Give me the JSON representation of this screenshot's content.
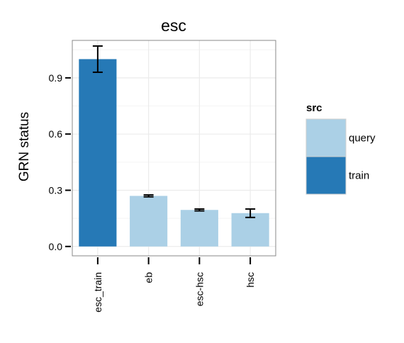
{
  "chart_data": {
    "type": "bar",
    "title": "esc",
    "xlabel": "",
    "ylabel": "GRN status",
    "categories": [
      "esc_train",
      "eb",
      "esc-hsc",
      "hsc"
    ],
    "values": [
      1.0,
      0.27,
      0.195,
      0.178
    ],
    "error_low": [
      0.93,
      0.265,
      0.19,
      0.155
    ],
    "error_high": [
      1.07,
      0.275,
      0.2,
      0.2
    ],
    "groups": [
      "train",
      "query",
      "query",
      "query"
    ],
    "ylim": [
      -0.05,
      1.1
    ],
    "yticks": [
      0.0,
      0.3,
      0.6,
      0.9
    ],
    "ytick_labels": [
      "0.0",
      "0.3",
      "0.6",
      "0.9"
    ],
    "grid": true,
    "legend": {
      "title": "src",
      "position": "right",
      "items": [
        {
          "label": "query",
          "color": "#a6cee3"
        },
        {
          "label": "train",
          "color": "#2678b5"
        }
      ]
    }
  },
  "colors": {
    "query": "#abd0e6",
    "train": "#2679b6",
    "grid": "#ebebeb",
    "panel_border": "#888888"
  }
}
